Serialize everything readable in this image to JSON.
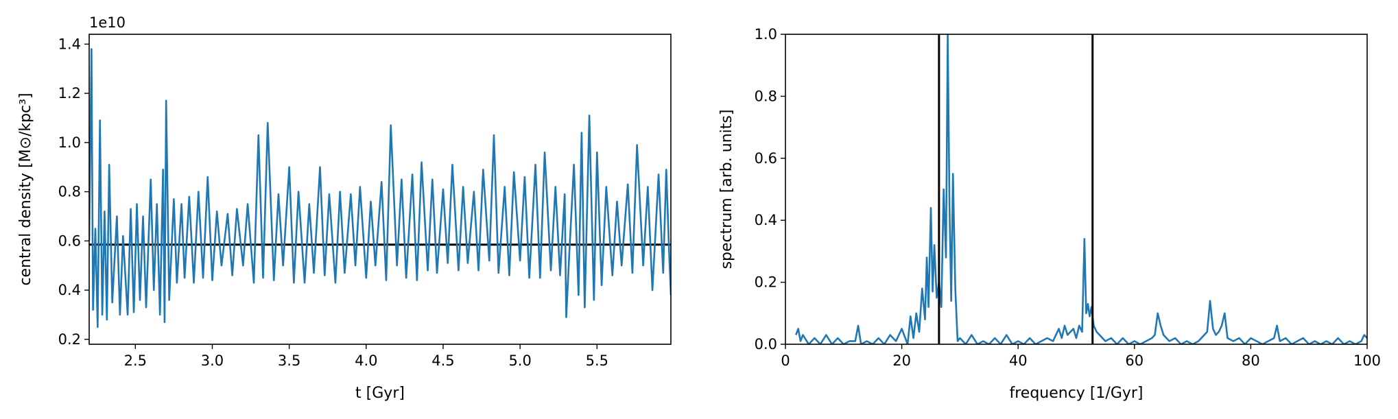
{
  "chart_data": [
    {
      "type": "line",
      "xlabel": "t [Gyr]",
      "ylabel": "central density [M⊙/kpc³]",
      "offset_text": "1e10",
      "xlim": [
        2.2,
        5.98
      ],
      "ylim": [
        0.18,
        1.44
      ],
      "xticks": [
        2.5,
        3.0,
        3.5,
        4.0,
        4.5,
        5.0,
        5.5
      ],
      "xtick_labels": [
        "2.5",
        "3.0",
        "3.5",
        "4.0",
        "4.5",
        "5.0",
        "5.5"
      ],
      "yticks": [
        0.2,
        0.4,
        0.6,
        0.8,
        1.0,
        1.2,
        1.4
      ],
      "ytick_labels": [
        "0.2",
        "0.4",
        "0.6",
        "0.8",
        "1.0",
        "1.2",
        "1.4"
      ],
      "hline": 0.585,
      "series_color": "#1f77b4",
      "reference_color": "#000000",
      "grid": false,
      "series": [
        {
          "x": [
            2.2,
            2.215,
            2.225,
            2.24,
            2.255,
            2.27,
            2.285,
            2.3,
            2.315,
            2.33,
            2.35,
            2.38,
            2.4,
            2.42,
            2.45,
            2.47,
            2.49,
            2.51,
            2.53,
            2.55,
            2.57,
            2.6,
            2.62,
            2.64,
            2.66,
            2.68,
            2.69,
            2.7,
            2.72,
            2.75,
            2.77,
            2.8,
            2.82,
            2.85,
            2.88,
            2.91,
            2.94,
            2.97,
            3.0,
            3.03,
            3.06,
            3.1,
            3.13,
            3.16,
            3.2,
            3.23,
            3.27,
            3.3,
            3.33,
            3.36,
            3.4,
            3.43,
            3.46,
            3.5,
            3.53,
            3.56,
            3.6,
            3.63,
            3.66,
            3.7,
            3.73,
            3.76,
            3.8,
            3.83,
            3.86,
            3.9,
            3.93,
            3.96,
            4.0,
            4.03,
            4.06,
            4.1,
            4.13,
            4.16,
            4.2,
            4.23,
            4.26,
            4.3,
            4.33,
            4.36,
            4.4,
            4.43,
            4.46,
            4.5,
            4.53,
            4.56,
            4.6,
            4.63,
            4.66,
            4.7,
            4.73,
            4.76,
            4.8,
            4.83,
            4.86,
            4.9,
            4.93,
            4.96,
            5.0,
            5.03,
            5.06,
            5.1,
            5.13,
            5.16,
            5.2,
            5.23,
            5.26,
            5.29,
            5.3,
            5.32,
            5.35,
            5.38,
            5.4,
            5.42,
            5.45,
            5.48,
            5.5,
            5.53,
            5.56,
            5.6,
            5.63,
            5.66,
            5.7,
            5.73,
            5.76,
            5.8,
            5.83,
            5.86,
            5.9,
            5.93,
            5.95,
            5.97,
            5.98
          ],
          "y": [
            0.6,
            1.38,
            0.32,
            0.65,
            0.25,
            1.09,
            0.3,
            0.72,
            0.28,
            0.91,
            0.35,
            0.7,
            0.3,
            0.62,
            0.3,
            0.73,
            0.31,
            0.75,
            0.36,
            0.7,
            0.33,
            0.85,
            0.4,
            0.75,
            0.3,
            0.89,
            0.27,
            1.17,
            0.36,
            0.77,
            0.43,
            0.75,
            0.45,
            0.78,
            0.43,
            0.8,
            0.45,
            0.86,
            0.44,
            0.72,
            0.5,
            0.71,
            0.46,
            0.73,
            0.5,
            0.75,
            0.43,
            1.03,
            0.45,
            1.08,
            0.44,
            0.79,
            0.5,
            0.9,
            0.43,
            0.8,
            0.43,
            0.75,
            0.47,
            0.9,
            0.46,
            0.79,
            0.43,
            0.8,
            0.47,
            0.79,
            0.5,
            0.82,
            0.45,
            0.76,
            0.5,
            0.84,
            0.44,
            1.07,
            0.5,
            0.85,
            0.45,
            0.87,
            0.44,
            0.92,
            0.48,
            0.85,
            0.47,
            0.81,
            0.51,
            0.91,
            0.48,
            0.82,
            0.51,
            0.8,
            0.48,
            0.89,
            0.52,
            1.03,
            0.47,
            0.82,
            0.46,
            0.88,
            0.52,
            0.86,
            0.45,
            0.91,
            0.45,
            0.96,
            0.48,
            0.82,
            0.46,
            0.79,
            0.29,
            0.55,
            0.91,
            0.38,
            1.04,
            0.33,
            1.11,
            0.36,
            0.96,
            0.42,
            0.82,
            0.46,
            0.76,
            0.5,
            0.83,
            0.47,
            0.99,
            0.5,
            0.82,
            0.4,
            0.87,
            0.47,
            0.89,
            0.53,
            0.38
          ]
        }
      ]
    },
    {
      "type": "line",
      "xlabel": "frequency [1/Gyr]",
      "ylabel": "spectrum [arb. units]",
      "xlim": [
        0,
        100
      ],
      "ylim": [
        0.0,
        1.0
      ],
      "xticks": [
        0,
        20,
        40,
        60,
        80,
        100
      ],
      "xtick_labels": [
        "0",
        "20",
        "40",
        "60",
        "80",
        "100"
      ],
      "yticks": [
        0.0,
        0.2,
        0.4,
        0.6,
        0.8,
        1.0
      ],
      "ytick_labels": [
        "0.0",
        "0.2",
        "0.4",
        "0.6",
        "0.8",
        "1.0"
      ],
      "vlines": [
        26.4,
        52.8
      ],
      "series_color": "#1f77b4",
      "reference_color": "#000000",
      "grid": false,
      "series": [
        {
          "x": [
            1.8,
            2.2,
            2.6,
            3.0,
            4.0,
            5.0,
            6.0,
            7.0,
            8.0,
            9.0,
            10.0,
            11.0,
            12.0,
            12.5,
            13.0,
            14.0,
            15.0,
            16.0,
            17.0,
            18.0,
            19.0,
            20.0,
            21.0,
            21.5,
            22.0,
            22.5,
            23.0,
            23.5,
            24.0,
            24.3,
            24.6,
            25.0,
            25.3,
            25.6,
            26.0,
            26.4,
            26.8,
            27.2,
            27.6,
            27.9,
            28.2,
            28.5,
            28.8,
            29.2,
            29.6,
            30.0,
            31.0,
            32.0,
            33.0,
            34.0,
            35.0,
            36.0,
            37.0,
            38.0,
            39.0,
            40.0,
            41.0,
            42.0,
            43.0,
            44.0,
            45.0,
            46.0,
            47.0,
            47.5,
            48.0,
            48.5,
            49.0,
            49.5,
            50.0,
            50.5,
            51.0,
            51.4,
            51.7,
            52.0,
            52.3,
            52.6,
            53.0,
            53.5,
            54.0,
            55.0,
            56.0,
            57.0,
            58.0,
            59.0,
            60.0,
            61.0,
            62.0,
            63.0,
            63.5,
            64.0,
            64.5,
            65.0,
            66.0,
            67.0,
            68.0,
            69.0,
            70.0,
            71.0,
            72.0,
            72.5,
            73.0,
            73.5,
            74.0,
            74.5,
            75.0,
            75.5,
            76.0,
            77.0,
            78.0,
            79.0,
            80.0,
            81.0,
            82.0,
            83.0,
            84.0,
            84.5,
            85.0,
            86.0,
            87.0,
            88.0,
            89.0,
            90.0,
            91.0,
            92.0,
            93.0,
            94.0,
            95.0,
            96.0,
            97.0,
            98.0,
            99.0,
            99.5,
            100.0
          ],
          "y": [
            0.03,
            0.05,
            0.01,
            0.03,
            0.0,
            0.02,
            0.0,
            0.03,
            0.0,
            0.02,
            0.0,
            0.01,
            0.01,
            0.06,
            0.0,
            0.01,
            0.0,
            0.02,
            0.0,
            0.03,
            0.01,
            0.05,
            0.0,
            0.09,
            0.02,
            0.1,
            0.04,
            0.18,
            0.08,
            0.28,
            0.12,
            0.44,
            0.17,
            0.32,
            0.15,
            0.2,
            0.12,
            0.5,
            0.28,
            1.0,
            0.45,
            0.14,
            0.55,
            0.18,
            0.01,
            0.02,
            0.0,
            0.03,
            0.0,
            0.01,
            0.0,
            0.02,
            0.0,
            0.03,
            0.0,
            0.01,
            0.0,
            0.02,
            0.0,
            0.01,
            0.02,
            0.01,
            0.05,
            0.02,
            0.06,
            0.03,
            0.04,
            0.05,
            0.02,
            0.06,
            0.04,
            0.34,
            0.1,
            0.13,
            0.09,
            0.12,
            0.06,
            0.04,
            0.03,
            0.01,
            0.02,
            0.0,
            0.02,
            0.0,
            0.01,
            0.0,
            0.01,
            0.02,
            0.03,
            0.1,
            0.06,
            0.03,
            0.01,
            0.02,
            0.0,
            0.01,
            0.0,
            0.01,
            0.03,
            0.04,
            0.14,
            0.05,
            0.03,
            0.04,
            0.06,
            0.1,
            0.02,
            0.01,
            0.02,
            0.0,
            0.02,
            0.01,
            0.0,
            0.01,
            0.02,
            0.06,
            0.01,
            0.02,
            0.0,
            0.01,
            0.02,
            0.0,
            0.01,
            0.0,
            0.01,
            0.0,
            0.02,
            0.0,
            0.01,
            0.0,
            0.01,
            0.03,
            0.02
          ]
        }
      ]
    }
  ]
}
